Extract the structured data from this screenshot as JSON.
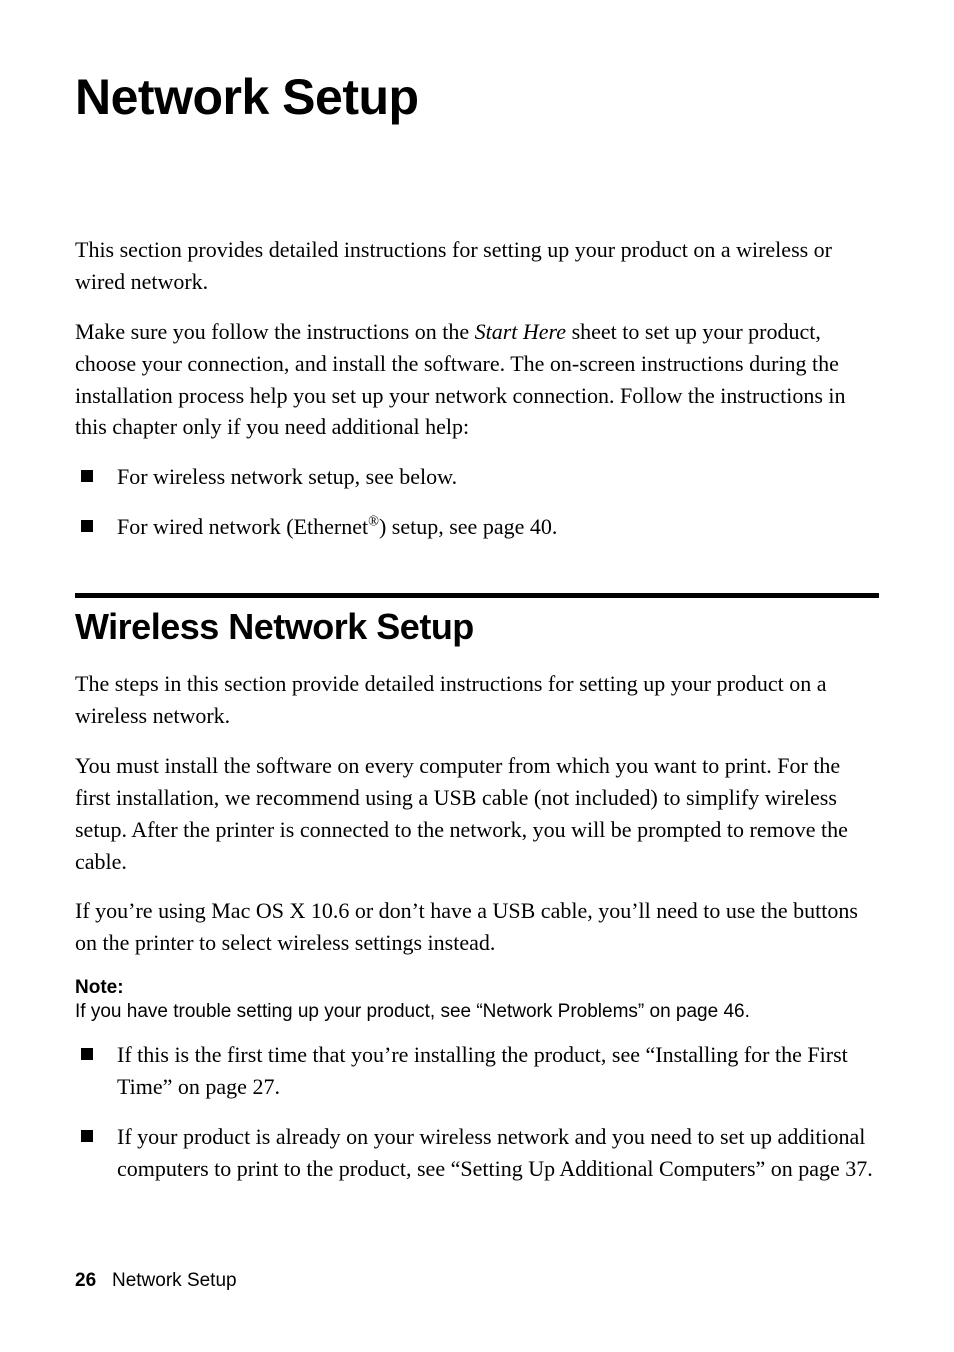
{
  "title": "Network Setup",
  "intro_p1": "This section provides detailed instructions for setting up your product on a wireless or wired network.",
  "intro_p2_pre": "Make sure you follow the instructions on the ",
  "intro_p2_em": "Start Here",
  "intro_p2_post": " sheet to set up your product, choose your connection, and install the software. The on-screen instructions during the installation process help you set up your network connection. Follow the instructions in this chapter only if you need additional help:",
  "bullets1": {
    "b1": "For wireless network setup, see below.",
    "b2_pre": "For wired network (Ethernet",
    "b2_sup": "®",
    "b2_post": ") setup, see page 40."
  },
  "section2": {
    "title": "Wireless Network Setup",
    "p1": "The steps in this section provide detailed instructions for setting up your product on a wireless network.",
    "p2": "You must install the software on every computer from which you want to print. For the first installation, we recommend using a USB cable (not included) to simplify wireless setup. After the printer is connected to the network, you will be prompted to remove the cable.",
    "p3": "If you’re using Mac OS X 10.6 or don’t have a USB cable, you’ll need to use the buttons on the printer to select wireless settings instead.",
    "note_label": "Note:",
    "note_text": "If you have trouble setting up your product, see “Network Problems” on page 46.",
    "bullets": {
      "b1": "If this is the first time that you’re installing the product, see “Installing for the First Time” on page 27.",
      "b2": "If your product is already on your wireless network and you need to set up additional computers to print to the product, see “Setting Up Additional Computers” on page 37."
    }
  },
  "footer": {
    "page": "26",
    "label": "Network Setup"
  },
  "colors": {
    "text": "#000000",
    "background": "#ffffff",
    "rule": "#000000"
  },
  "typography": {
    "title_fontsize": 50,
    "section_title_fontsize": 36,
    "body_fontsize": 22,
    "note_fontsize": 19,
    "footer_fontsize": 19
  }
}
